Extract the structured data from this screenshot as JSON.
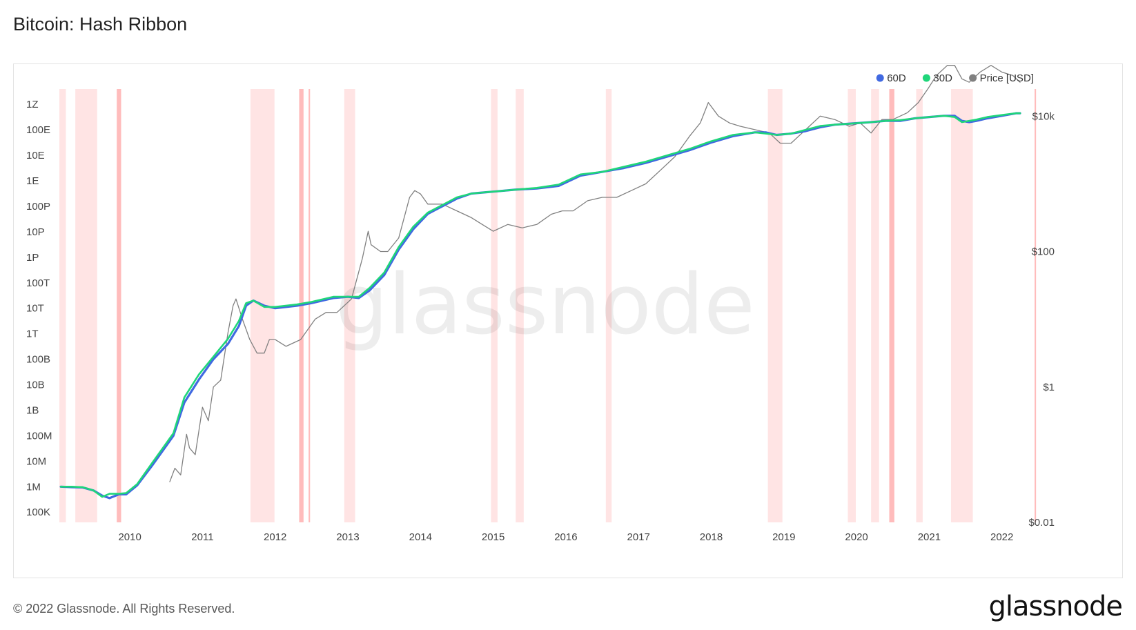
{
  "page": {
    "title": "Bitcoin: Hash Ribbon",
    "copyright": "© 2022 Glassnode. All Rights Reserved.",
    "brand": "glassnode",
    "watermark": "glassnode"
  },
  "chart_data": {
    "type": "line",
    "title": "Bitcoin: Hash Ribbon",
    "x_range": [
      2009.03,
      2022.25
    ],
    "x_ticks": [
      "2010",
      "2011",
      "2012",
      "2013",
      "2014",
      "2015",
      "2016",
      "2017",
      "2018",
      "2019",
      "2020",
      "2021",
      "2022"
    ],
    "y_left": {
      "scale": "log",
      "range_log10": [
        4.6,
        21.6
      ],
      "ticks": [
        {
          "label": "100K",
          "log": 5
        },
        {
          "label": "1M",
          "log": 6
        },
        {
          "label": "10M",
          "log": 7
        },
        {
          "label": "100M",
          "log": 8
        },
        {
          "label": "1B",
          "log": 9
        },
        {
          "label": "10B",
          "log": 10
        },
        {
          "label": "100B",
          "log": 11
        },
        {
          "label": "1T",
          "log": 12
        },
        {
          "label": "10T",
          "log": 13
        },
        {
          "label": "100T",
          "log": 14
        },
        {
          "label": "1P",
          "log": 15
        },
        {
          "label": "10P",
          "log": 16
        },
        {
          "label": "100P",
          "log": 17
        },
        {
          "label": "1E",
          "log": 18
        },
        {
          "label": "10E",
          "log": 19
        },
        {
          "label": "100E",
          "log": 20
        },
        {
          "label": "1Z",
          "log": 21
        }
      ]
    },
    "y_right": {
      "scale": "log",
      "unit": "USD",
      "range_log10": [
        -2,
        4.4
      ],
      "ticks": [
        {
          "label": "$0.01",
          "log": -2
        },
        {
          "label": "$1",
          "log": 0
        },
        {
          "label": "$100",
          "log": 2
        },
        {
          "label": "$10k",
          "log": 4
        }
      ]
    },
    "legend": {
      "position": "top-right",
      "entries": [
        {
          "label": "60D",
          "color": "#4169e1"
        },
        {
          "label": "30D",
          "color": "#1fd67a"
        },
        {
          "label": "Price [USD]",
          "color": "#808080"
        }
      ]
    },
    "capitulation_bands": [
      [
        2009.03,
        2009.12
      ],
      [
        2009.25,
        2009.55
      ],
      [
        2009.82,
        2009.88
      ],
      [
        2011.66,
        2011.99
      ],
      [
        2012.33,
        2012.39
      ],
      [
        2012.46,
        2012.48
      ],
      [
        2012.95,
        2013.1
      ],
      [
        2014.97,
        2015.06
      ],
      [
        2015.31,
        2015.42
      ],
      [
        2016.55,
        2016.63
      ],
      [
        2018.78,
        2018.98
      ],
      [
        2019.88,
        2019.99
      ],
      [
        2020.2,
        2020.31
      ],
      [
        2020.45,
        2020.52
      ],
      [
        2020.82,
        2020.91
      ],
      [
        2021.3,
        2021.6
      ],
      [
        2022.45,
        2022.47
      ]
    ],
    "series": [
      {
        "name": "60D",
        "axis": "left",
        "color": "#4169e1",
        "x": [
          2009.05,
          2009.2,
          2009.35,
          2009.5,
          2009.62,
          2009.72,
          2009.85,
          2009.95,
          2010.1,
          2010.3,
          2010.5,
          2010.6,
          2010.75,
          2010.95,
          2011.15,
          2011.35,
          2011.5,
          2011.6,
          2011.7,
          2011.85,
          2012.0,
          2012.3,
          2012.5,
          2012.8,
          2013.0,
          2013.15,
          2013.3,
          2013.5,
          2013.7,
          2013.9,
          2014.1,
          2014.3,
          2014.5,
          2014.7,
          2014.9,
          2015.1,
          2015.3,
          2015.6,
          2015.9,
          2016.2,
          2016.5,
          2016.8,
          2017.1,
          2017.4,
          2017.7,
          2018.0,
          2018.3,
          2018.6,
          2018.75,
          2018.9,
          2019.1,
          2019.3,
          2019.5,
          2019.7,
          2019.95,
          2020.2,
          2020.4,
          2020.6,
          2020.8,
          2021.0,
          2021.2,
          2021.35,
          2021.45,
          2021.55,
          2021.65,
          2021.8,
          2022.0,
          2022.2,
          2022.25
        ],
        "y_log": [
          6.0,
          5.98,
          5.97,
          5.85,
          5.65,
          5.55,
          5.7,
          5.7,
          6.05,
          6.8,
          7.6,
          8.0,
          9.3,
          10.2,
          11.0,
          11.6,
          12.3,
          13.1,
          13.3,
          13.1,
          13.0,
          13.1,
          13.2,
          13.4,
          13.45,
          13.4,
          13.7,
          14.3,
          15.3,
          16.1,
          16.7,
          17.0,
          17.3,
          17.5,
          17.55,
          17.6,
          17.65,
          17.7,
          17.8,
          18.2,
          18.35,
          18.5,
          18.7,
          18.95,
          19.2,
          19.5,
          19.75,
          19.9,
          19.9,
          19.8,
          19.85,
          19.95,
          20.1,
          20.2,
          20.25,
          20.3,
          20.35,
          20.35,
          20.45,
          20.5,
          20.55,
          20.55,
          20.35,
          20.3,
          20.35,
          20.45,
          20.55,
          20.65,
          20.65
        ]
      },
      {
        "name": "30D",
        "axis": "left",
        "color": "#1fd67a",
        "x": [
          2009.05,
          2009.2,
          2009.35,
          2009.5,
          2009.62,
          2009.72,
          2009.85,
          2009.95,
          2010.1,
          2010.3,
          2010.5,
          2010.6,
          2010.75,
          2010.95,
          2011.15,
          2011.35,
          2011.5,
          2011.6,
          2011.7,
          2011.85,
          2012.0,
          2012.3,
          2012.5,
          2012.8,
          2013.0,
          2013.15,
          2013.3,
          2013.5,
          2013.7,
          2013.9,
          2014.1,
          2014.3,
          2014.5,
          2014.7,
          2014.9,
          2015.1,
          2015.3,
          2015.6,
          2015.9,
          2016.2,
          2016.5,
          2016.8,
          2017.1,
          2017.4,
          2017.7,
          2018.0,
          2018.3,
          2018.6,
          2018.75,
          2018.9,
          2019.1,
          2019.3,
          2019.5,
          2019.7,
          2019.95,
          2020.2,
          2020.4,
          2020.6,
          2020.8,
          2021.0,
          2021.2,
          2021.35,
          2021.45,
          2021.55,
          2021.65,
          2021.8,
          2022.0,
          2022.2,
          2022.25
        ],
        "y_log": [
          6.0,
          6.0,
          5.98,
          5.85,
          5.6,
          5.72,
          5.72,
          5.75,
          6.1,
          6.9,
          7.7,
          8.1,
          9.5,
          10.4,
          11.1,
          11.8,
          12.5,
          13.2,
          13.3,
          13.05,
          13.05,
          13.15,
          13.25,
          13.45,
          13.45,
          13.45,
          13.8,
          14.4,
          15.4,
          16.2,
          16.75,
          17.05,
          17.35,
          17.5,
          17.55,
          17.6,
          17.65,
          17.72,
          17.85,
          18.25,
          18.35,
          18.55,
          18.75,
          19.0,
          19.25,
          19.55,
          19.8,
          19.9,
          19.85,
          19.8,
          19.85,
          20.0,
          20.15,
          20.2,
          20.25,
          20.3,
          20.35,
          20.38,
          20.45,
          20.5,
          20.55,
          20.5,
          20.3,
          20.35,
          20.4,
          20.5,
          20.58,
          20.65,
          20.65
        ]
      },
      {
        "name": "Price [USD]",
        "axis": "right",
        "color": "#808080",
        "x": [
          2010.55,
          2010.62,
          2010.7,
          2010.78,
          2010.82,
          2010.9,
          2011.0,
          2011.08,
          2011.15,
          2011.25,
          2011.35,
          2011.42,
          2011.46,
          2011.55,
          2011.65,
          2011.75,
          2011.85,
          2011.92,
          2012.0,
          2012.15,
          2012.35,
          2012.55,
          2012.7,
          2012.85,
          2013.05,
          2013.2,
          2013.28,
          2013.32,
          2013.45,
          2013.55,
          2013.7,
          2013.85,
          2013.92,
          2014.0,
          2014.1,
          2014.3,
          2014.5,
          2014.7,
          2014.85,
          2015.0,
          2015.2,
          2015.4,
          2015.6,
          2015.8,
          2015.95,
          2016.1,
          2016.3,
          2016.5,
          2016.7,
          2016.9,
          2017.1,
          2017.3,
          2017.5,
          2017.7,
          2017.85,
          2017.96,
          2018.1,
          2018.25,
          2018.4,
          2018.6,
          2018.8,
          2018.95,
          2019.1,
          2019.3,
          2019.5,
          2019.7,
          2019.9,
          2020.05,
          2020.2,
          2020.35,
          2020.5,
          2020.7,
          2020.85,
          2020.98,
          2021.1,
          2021.25,
          2021.35,
          2021.45,
          2021.55,
          2021.7,
          2021.85,
          2022.0,
          2022.15,
          2022.25
        ],
        "y_log": [
          -1.4,
          -1.2,
          -1.3,
          -0.7,
          -0.9,
          -1.0,
          -0.3,
          -0.5,
          0.0,
          0.1,
          0.8,
          1.2,
          1.3,
          1.0,
          0.7,
          0.5,
          0.5,
          0.7,
          0.7,
          0.6,
          0.7,
          1.0,
          1.1,
          1.1,
          1.3,
          1.9,
          2.3,
          2.1,
          2.0,
          2.0,
          2.2,
          2.8,
          2.9,
          2.85,
          2.7,
          2.7,
          2.6,
          2.5,
          2.4,
          2.3,
          2.4,
          2.35,
          2.4,
          2.55,
          2.6,
          2.6,
          2.75,
          2.8,
          2.8,
          2.9,
          3.0,
          3.2,
          3.4,
          3.7,
          3.9,
          4.2,
          4.0,
          3.9,
          3.85,
          3.8,
          3.75,
          3.6,
          3.6,
          3.8,
          4.0,
          3.95,
          3.85,
          3.9,
          3.75,
          3.95,
          3.95,
          4.05,
          4.2,
          4.4,
          4.6,
          4.75,
          4.75,
          4.55,
          4.5,
          4.65,
          4.75,
          4.65,
          4.6,
          4.5
        ]
      }
    ]
  }
}
